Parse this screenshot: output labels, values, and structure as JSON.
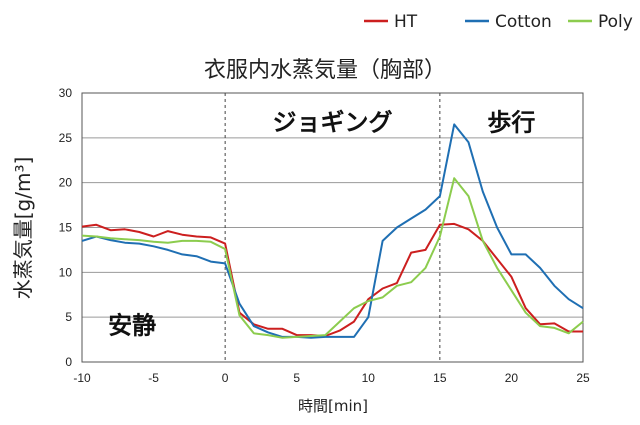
{
  "chart_data": {
    "type": "line",
    "title": "衣服内水蒸気量（胸部）",
    "xlabel": "時間[min]",
    "ylabel": "水蒸気量[g/m³]",
    "xlim": [
      -10,
      25
    ],
    "ylim": [
      0,
      30
    ],
    "xticks": [
      "-10",
      "-5",
      "0",
      "5",
      "10",
      "15",
      "20",
      "25"
    ],
    "yticks": [
      "0",
      "5",
      "10",
      "15",
      "20",
      "25",
      "30"
    ],
    "grid": "horizontal",
    "legend_position": "top-right",
    "phase_dividers": [
      0,
      15
    ],
    "phase_labels": [
      {
        "text": "安静",
        "x": -6.5,
        "y": 3.2
      },
      {
        "text": "ジョギング",
        "x": 7.5,
        "y": 25.8
      },
      {
        "text": "歩行",
        "x": 20,
        "y": 25.8
      }
    ],
    "series": [
      {
        "name": "HT",
        "color": "#cc1f1f",
        "x": [
          -10,
          -9,
          -8,
          -7,
          -6,
          -5,
          -4,
          -3,
          -2,
          -1,
          0,
          1,
          2,
          3,
          4,
          5,
          6,
          7,
          8,
          9,
          10,
          11,
          12,
          13,
          14,
          15,
          16,
          17,
          18,
          19,
          20,
          21,
          22,
          23,
          24,
          25
        ],
        "values": [
          15.1,
          15.3,
          14.7,
          14.8,
          14.5,
          14.0,
          14.6,
          14.2,
          14.0,
          13.9,
          13.2,
          5.5,
          4.2,
          3.7,
          3.7,
          3.0,
          3.0,
          2.9,
          3.5,
          4.5,
          7.0,
          8.2,
          8.8,
          12.2,
          12.5,
          15.3,
          15.4,
          14.8,
          13.5,
          11.5,
          9.5,
          6.0,
          4.2,
          4.3,
          3.4,
          3.4
        ]
      },
      {
        "name": "Cotton",
        "color": "#1f6fb3",
        "x": [
          -10,
          -9,
          -8,
          -7,
          -6,
          -5,
          -4,
          -3,
          -2,
          -1,
          0,
          1,
          2,
          3,
          4,
          5,
          6,
          7,
          8,
          9,
          10,
          11,
          12,
          13,
          14,
          15,
          16,
          17,
          18,
          19,
          20,
          21,
          22,
          23,
          24,
          25
        ],
        "values": [
          13.5,
          14.0,
          13.6,
          13.3,
          13.2,
          12.9,
          12.5,
          12.0,
          11.8,
          11.2,
          11.0,
          6.5,
          4.0,
          3.3,
          2.8,
          2.8,
          2.7,
          2.8,
          2.8,
          2.8,
          5.0,
          13.5,
          15.0,
          16.0,
          17.0,
          18.5,
          26.5,
          24.5,
          19.0,
          15.0,
          12.0,
          12.0,
          10.5,
          8.5,
          7.0,
          6.0
        ]
      },
      {
        "name": "Poly",
        "color": "#8ccc4e",
        "x": [
          -10,
          -9,
          -8,
          -7,
          -6,
          -5,
          -4,
          -3,
          -2,
          -1,
          0,
          1,
          2,
          3,
          4,
          5,
          6,
          7,
          8,
          9,
          10,
          11,
          12,
          13,
          14,
          15,
          16,
          17,
          18,
          19,
          20,
          21,
          22,
          23,
          24,
          25
        ],
        "values": [
          14.1,
          14.0,
          13.8,
          13.7,
          13.6,
          13.4,
          13.3,
          13.5,
          13.5,
          13.4,
          12.6,
          5.2,
          3.2,
          3.0,
          2.7,
          2.8,
          2.9,
          3.0,
          4.5,
          6.0,
          6.8,
          7.2,
          8.5,
          8.9,
          10.5,
          14.0,
          20.5,
          18.5,
          13.5,
          10.5,
          8.0,
          5.5,
          4.0,
          3.8,
          3.2,
          4.5
        ]
      }
    ]
  }
}
